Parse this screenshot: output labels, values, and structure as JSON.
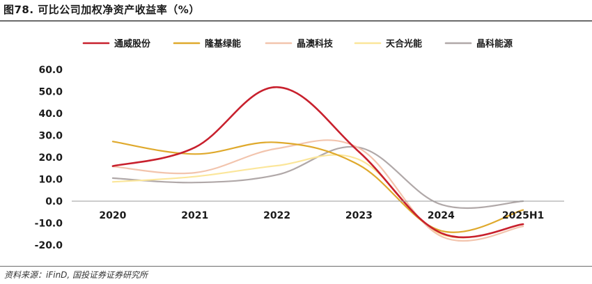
{
  "title": "图78. 可比公司加权净资产收益率（%）",
  "source": "资料来源：iFinD, 国投证券证券研究所",
  "chart_data": {
    "type": "line",
    "title": "",
    "xlabel": "",
    "ylabel": "",
    "categories": [
      "2020",
      "2021",
      "2022",
      "2023",
      "2024",
      "2025H1"
    ],
    "ylim": [
      -20,
      60
    ],
    "yticks": [
      "60.0",
      "50.0",
      "40.0",
      "30.0",
      "20.0",
      "10.0",
      "0.0",
      "-10.0",
      "-20.0"
    ],
    "grid": false,
    "smooth": true,
    "legend_position": "top",
    "series": [
      {
        "name": "通威股份",
        "color": "#c8202d",
        "width": 2.6,
        "values": [
          16.0,
          24.5,
          52.0,
          22.5,
          -14.5,
          -10.5
        ]
      },
      {
        "name": "隆基绿能",
        "color": "#dfa92c",
        "width": 2.2,
        "values": [
          27.2,
          21.5,
          26.8,
          16.5,
          -13.5,
          -4.0
        ]
      },
      {
        "name": "晶澳科技",
        "color": "#f2c4ad",
        "width": 2.2,
        "values": [
          15.8,
          13.0,
          24.0,
          24.2,
          -16.0,
          -11.5
        ]
      },
      {
        "name": "天合光能",
        "color": "#fbe69a",
        "width": 2.2,
        "values": [
          8.8,
          11.2,
          16.2,
          19.0,
          -15.0,
          -10.5
        ]
      },
      {
        "name": "晶科能源",
        "color": "#b0a8a8",
        "width": 2.2,
        "values": [
          10.5,
          8.5,
          12.0,
          24.5,
          -1.5,
          0.0
        ]
      }
    ]
  }
}
